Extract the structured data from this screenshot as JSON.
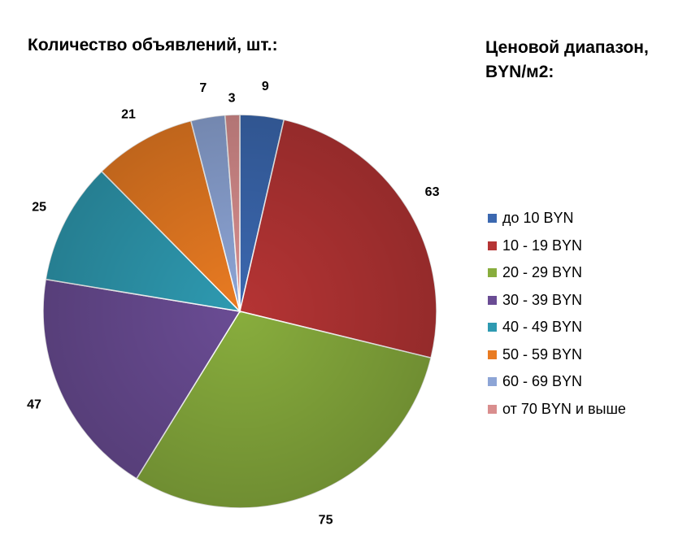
{
  "chart_data": {
    "type": "pie",
    "title": "Количество объявлений, шт.:",
    "legend_title": "Ценовой диапазон, BYN/м2:",
    "legend_position": "right",
    "categories": [
      "до 10 BYN",
      "10 - 19 BYN",
      "20 - 29 BYN",
      "30 - 39 BYN",
      "40 - 49 BYN",
      "50 - 59 BYN",
      "60 - 69 BYN",
      "от 70 BYN и выше"
    ],
    "values": [
      9,
      63,
      75,
      47,
      25,
      21,
      7,
      3
    ],
    "colors": [
      "#3B68B0",
      "#B53434",
      "#88AD3D",
      "#6A4C94",
      "#2E9AB1",
      "#E97B22",
      "#8DA5D6",
      "#D98E8E"
    ]
  }
}
